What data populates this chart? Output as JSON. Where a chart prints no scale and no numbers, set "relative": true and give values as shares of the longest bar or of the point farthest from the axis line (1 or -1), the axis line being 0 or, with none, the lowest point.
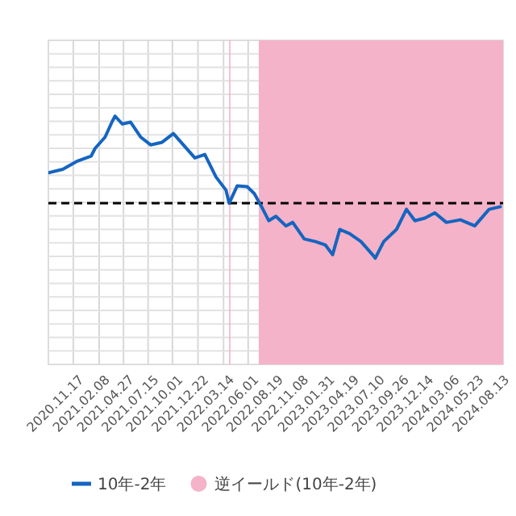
{
  "chart_data": {
    "type": "line",
    "relative": true,
    "grid": true,
    "legend": "bottom",
    "line_style": "solid",
    "marker": "none",
    "xlim": [
      "2020-08-29",
      "2024-08-27"
    ],
    "xticks": [
      {
        "value": "2020-11-17",
        "label": "2020.11.17"
      },
      {
        "value": "2021-02-08",
        "label": "2021.02.08"
      },
      {
        "value": "2021-04-27",
        "label": "2021.04.27"
      },
      {
        "value": "2021-07-15",
        "label": "2021.07.15"
      },
      {
        "value": "2021-10-01",
        "label": "2021.10.01"
      },
      {
        "value": "2021-12-22",
        "label": "2021.12.22"
      },
      {
        "value": "2022-03-14",
        "label": "2022.03.14"
      },
      {
        "value": "2022-06-01",
        "label": "2022.06.01"
      },
      {
        "value": "2022-08-19",
        "label": "2022.08.19"
      },
      {
        "value": "2022-11-08",
        "label": "2022.11.08"
      },
      {
        "value": "2023-01-31",
        "label": "2023.01.31"
      },
      {
        "value": "2023-04-19",
        "label": "2023.04.19"
      },
      {
        "value": "2023-07-10",
        "label": "2023.07.10"
      },
      {
        "value": "2023-09-26",
        "label": "2023.09.26"
      },
      {
        "value": "2023-12-14",
        "label": "2023.12.14"
      },
      {
        "value": "2024-03-06",
        "label": "2024.03.06"
      },
      {
        "value": "2024-05-23",
        "label": "2024.05.23"
      },
      {
        "value": "2024-08-13",
        "label": "2024.08.13"
      }
    ],
    "x": [
      "2020-08-29",
      "2020-10-14",
      "2020-11-28",
      "2021-01-13",
      "2021-01-26",
      "2021-02-27",
      "2021-03-22",
      "2021-03-31",
      "2021-04-23",
      "2021-05-20",
      "2021-06-21",
      "2021-07-23",
      "2021-08-29",
      "2021-10-04",
      "2021-11-05",
      "2021-12-12",
      "2022-01-13",
      "2022-02-18",
      "2022-03-22",
      "2022-04-01",
      "2022-04-27",
      "2022-05-29",
      "2022-06-21",
      "2022-07-14",
      "2022-08-06",
      "2022-08-29",
      "2022-09-30",
      "2022-10-22",
      "2022-11-28",
      "2023-01-03",
      "2023-02-04",
      "2023-02-27",
      "2023-03-22",
      "2023-04-23",
      "2023-05-29",
      "2023-07-05",
      "2023-07-14",
      "2023-08-10",
      "2023-09-20",
      "2023-10-22",
      "2023-11-18",
      "2023-12-20",
      "2024-01-21",
      "2024-02-27",
      "2024-04-12",
      "2024-05-28",
      "2024-07-13",
      "2024-08-18"
    ],
    "series": [
      {
        "name": "10年-2年",
        "color": "#1565c0",
        "values": [
          0.35,
          0.39,
          0.48,
          0.54,
          0.63,
          0.76,
          0.94,
          1.0,
          0.91,
          0.93,
          0.76,
          0.67,
          0.7,
          0.8,
          0.67,
          0.52,
          0.56,
          0.3,
          0.15,
          0.0,
          0.2,
          0.19,
          0.11,
          -0.04,
          -0.2,
          -0.15,
          -0.26,
          -0.22,
          -0.41,
          -0.44,
          -0.48,
          -0.59,
          -0.3,
          -0.35,
          -0.44,
          -0.59,
          -0.63,
          -0.44,
          -0.3,
          -0.07,
          -0.2,
          -0.17,
          -0.11,
          -0.22,
          -0.19,
          -0.26,
          -0.07,
          -0.04
        ]
      }
    ],
    "ref_lines": [
      {
        "axis": "y",
        "value": 0,
        "color": "#000000",
        "line_style": "dashed"
      }
    ],
    "bands": [
      {
        "axis": "x",
        "from": "2022-04-01",
        "to": "2022-04-04",
        "color": "#f4b3c8"
      },
      {
        "axis": "x",
        "from": "2022-07-05",
        "to": "2024-08-27",
        "color": "#f4b3c8",
        "label": "逆イールド(10年-2年)"
      }
    ]
  }
}
